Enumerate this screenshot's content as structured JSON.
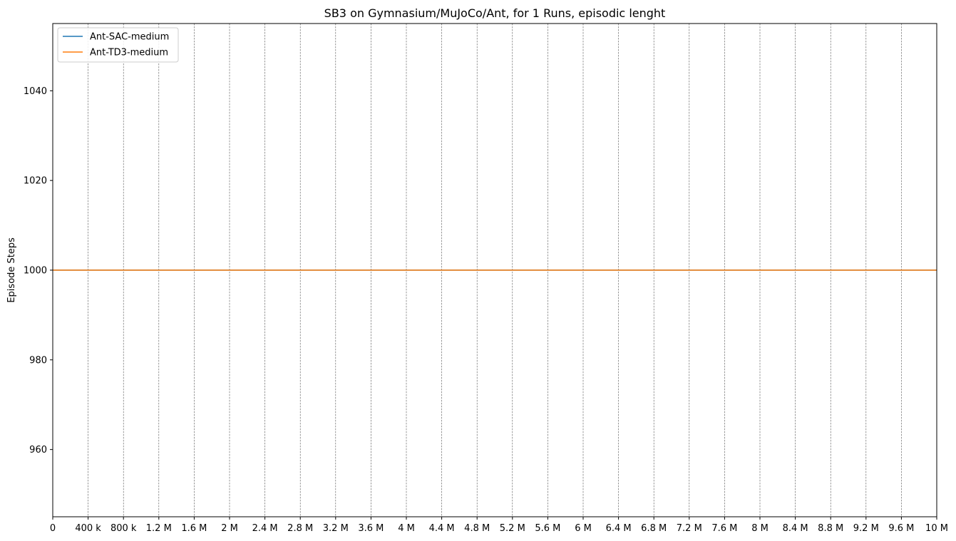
{
  "chart_data": {
    "type": "line",
    "title": "SB3 on Gymnasium/MuJoCo/Ant, for 1 Runs, episodic lenght",
    "xlabel": "",
    "ylabel": "Episode Steps",
    "xlim": [
      0,
      10000000
    ],
    "ylim": [
      945,
      1055
    ],
    "x_ticks": [
      0,
      400000,
      800000,
      1200000,
      1600000,
      2000000,
      2400000,
      2800000,
      3200000,
      3600000,
      4000000,
      4400000,
      4800000,
      5200000,
      5600000,
      6000000,
      6400000,
      6800000,
      7200000,
      7600000,
      8000000,
      8400000,
      8800000,
      9200000,
      9600000,
      10000000
    ],
    "x_tick_labels": [
      "0",
      "400 k",
      "800 k",
      "1.2 M",
      "1.6 M",
      "2 M",
      "2.4 M",
      "2.8 M",
      "3.2 M",
      "3.6 M",
      "4 M",
      "4.4 M",
      "4.8 M",
      "5.2 M",
      "5.6 M",
      "6 M",
      "6.4 M",
      "6.8 M",
      "7.2 M",
      "7.6 M",
      "8 M",
      "8.4 M",
      "8.8 M",
      "9.2 M",
      "9.6 M",
      "10 M"
    ],
    "y_ticks": [
      960,
      980,
      1000,
      1020,
      1040
    ],
    "y_tick_labels": [
      "960",
      "980",
      "1000",
      "1020",
      "1040"
    ],
    "grid": "vertical dashed",
    "legend_position": "top-left",
    "series": [
      {
        "name": "Ant-SAC-medium",
        "color": "#1f77b4",
        "x": [
          0,
          10000000
        ],
        "y": [
          1000,
          1000
        ]
      },
      {
        "name": "Ant-TD3-medium",
        "color": "#ff7f0e",
        "x": [
          0,
          10000000
        ],
        "y": [
          1000,
          1000
        ]
      }
    ]
  }
}
